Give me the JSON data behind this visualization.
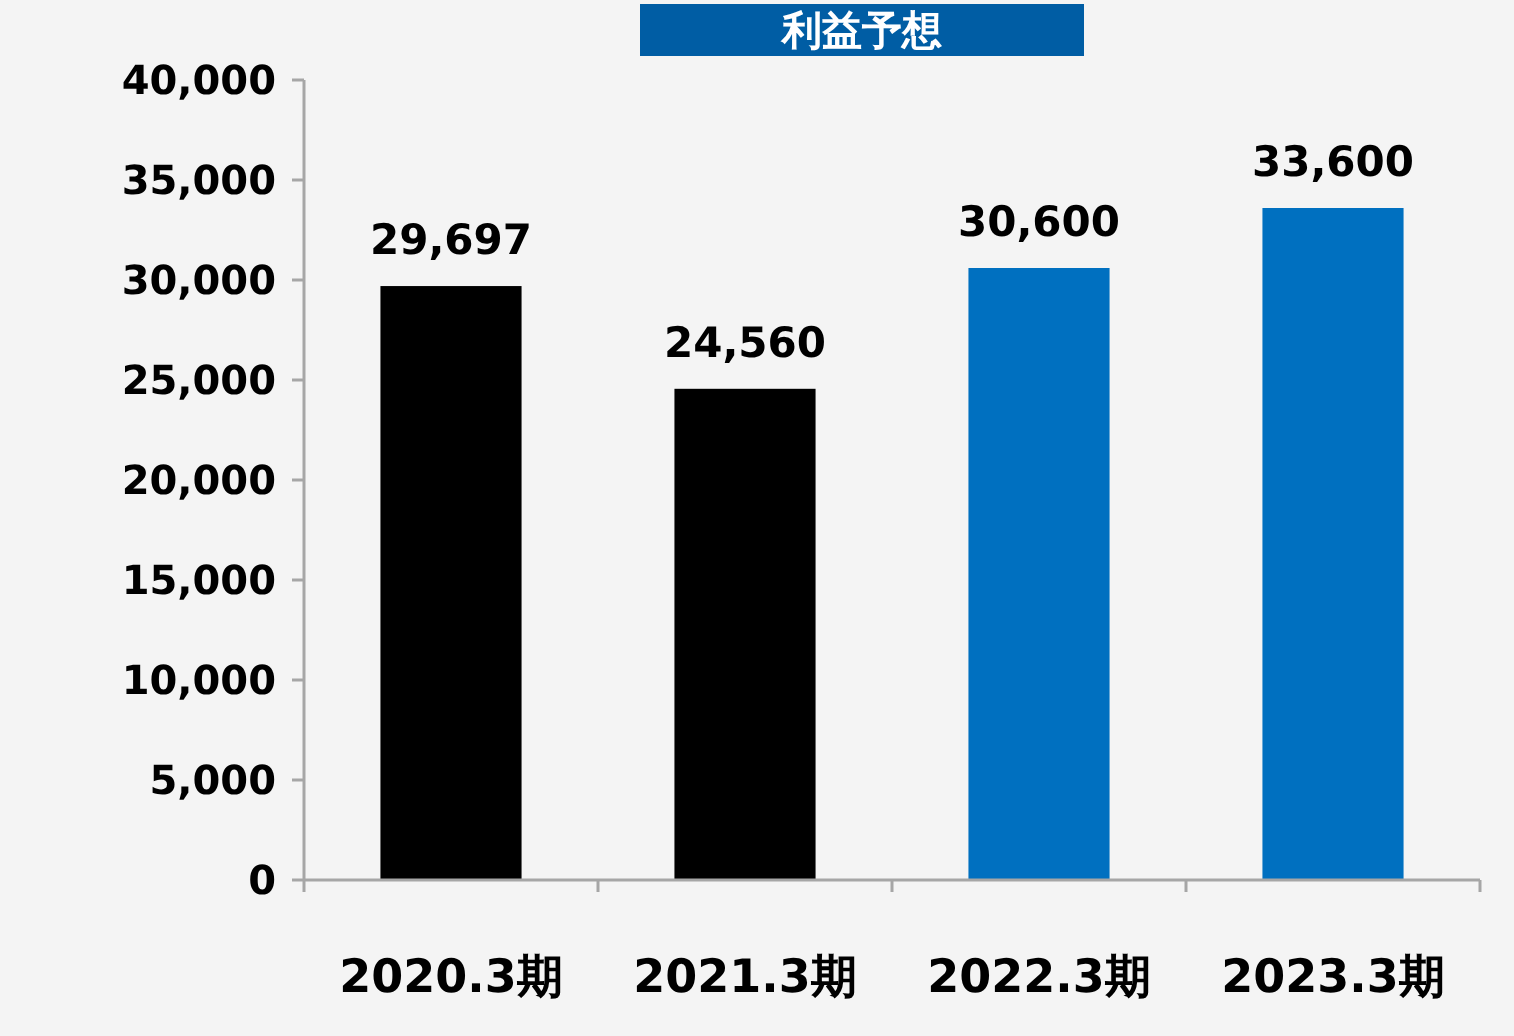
{
  "chart_data": {
    "type": "bar",
    "title": "利益予想",
    "categories": [
      "2020.3期",
      "2021.3期",
      "2022.3期",
      "2023.3期"
    ],
    "values": [
      29697,
      24560,
      30600,
      33600
    ],
    "colors": [
      "#000000",
      "#000000",
      "#0070c0",
      "#0070c0"
    ],
    "ylim": [
      0,
      40000
    ],
    "yticks": [
      {
        "value": 0,
        "label": "0"
      },
      {
        "value": 5000,
        "label": "5,000"
      },
      {
        "value": 10000,
        "label": "10,000"
      },
      {
        "value": 15000,
        "label": "15,000"
      },
      {
        "value": 20000,
        "label": "20,000"
      },
      {
        "value": 25000,
        "label": "25,000"
      },
      {
        "value": 30000,
        "label": "30,000"
      },
      {
        "value": 35000,
        "label": "35,000"
      },
      {
        "value": 40000,
        "label": "40,000"
      }
    ],
    "value_labels": [
      "29,697",
      "24,560",
      "30,600",
      "33,600"
    ],
    "grid": false
  }
}
